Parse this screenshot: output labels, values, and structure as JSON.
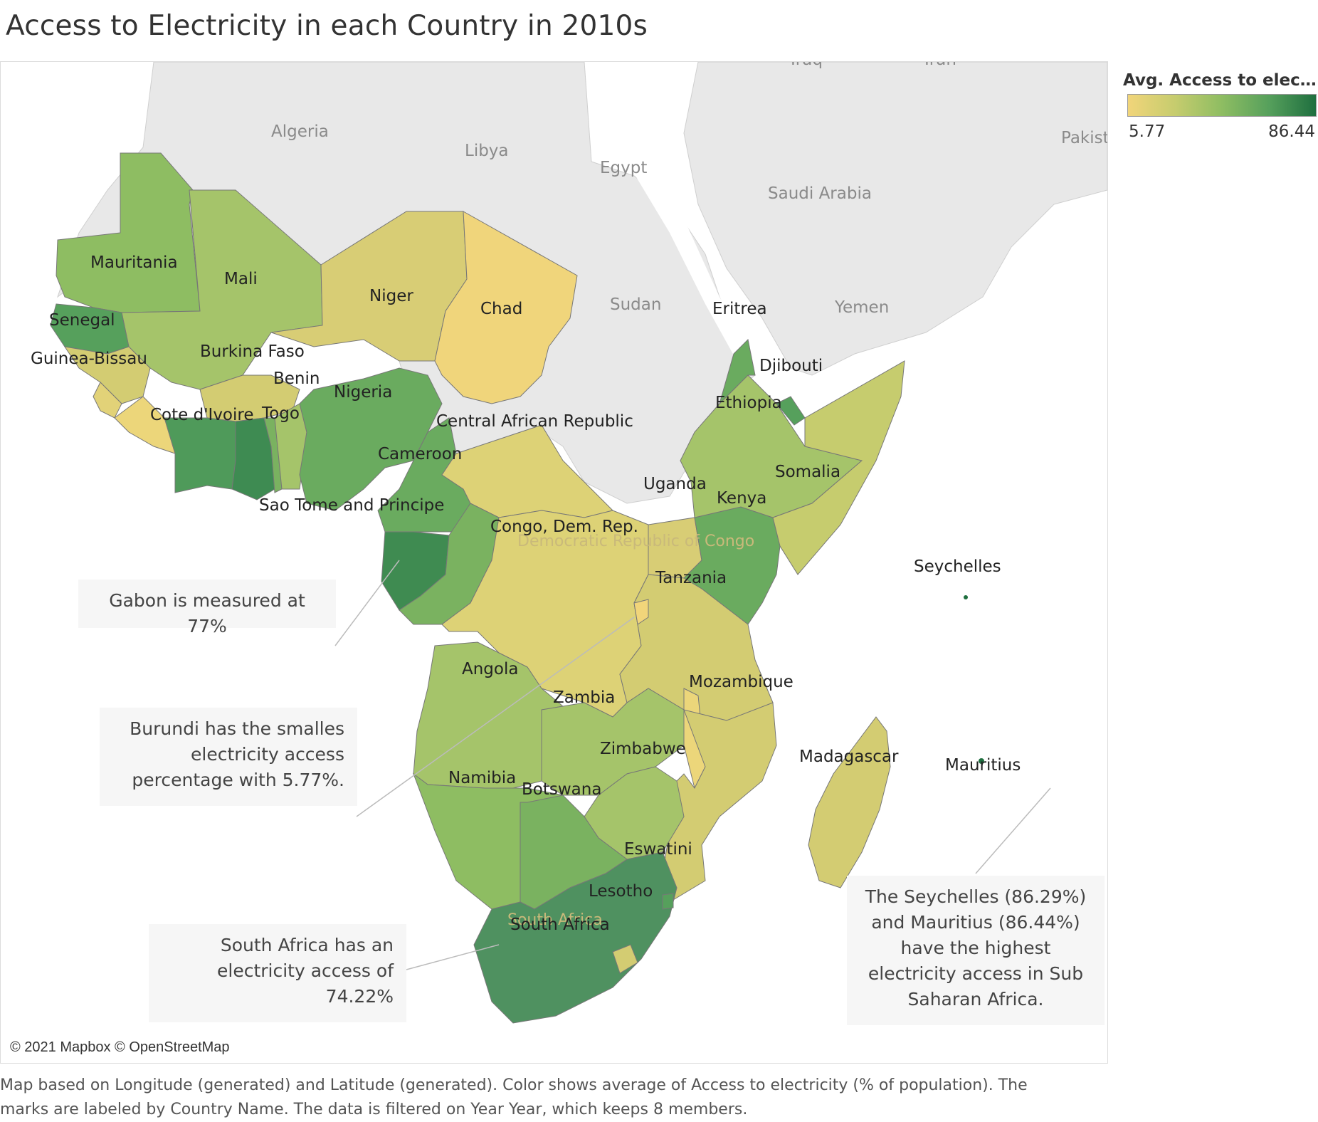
{
  "title": "Access to Electricity in each Country in 2010s",
  "legend": {
    "title": "Avg. Access to electrici..",
    "min": "5.77",
    "max": "86.44",
    "colors": [
      "#f1d57a",
      "#8ebd62",
      "#1f6f3f"
    ]
  },
  "background_labels": {
    "algeria": "Algeria",
    "libya": "Libya",
    "egypt": "Egypt",
    "saudi_arabia": "Saudi Arabia",
    "sudan": "Sudan",
    "yemen": "Yemen",
    "iraq": "Iraq",
    "iran": "Iran",
    "pakistan": "Pakist",
    "drc_ghost": "Democratic Republic of Congo",
    "south_africa_ghost": "South Africa"
  },
  "countries": {
    "mauritania": "Mauritania",
    "mali": "Mali",
    "niger": "Niger",
    "chad": "Chad",
    "senegal": "Senegal",
    "guinea_bissau": "Guinea-Bissau",
    "burkina_faso": "Burkina Faso",
    "benin": "Benin",
    "nigeria": "Nigeria",
    "cote_divoire": "Cote d'Ivoire",
    "togo": "Togo",
    "car": "Central African Republic",
    "cameroon": "Cameroon",
    "sao_tome": "Sao Tome and Principe",
    "drc": "Congo, Dem. Rep.",
    "uganda": "Uganda",
    "kenya": "Kenya",
    "somalia": "Somalia",
    "ethiopia": "Ethiopia",
    "djibouti": "Djibouti",
    "eritrea": "Eritrea",
    "seychelles": "Seychelles",
    "tanzania": "Tanzania",
    "angola": "Angola",
    "zambia": "Zambia",
    "mozambique": "Mozambique",
    "zimbabwe": "Zimbabwe",
    "madagascar": "Madagascar",
    "mauritius": "Mauritius",
    "namibia": "Namibia",
    "botswana": "Botswana",
    "eswatini": "Eswatini",
    "lesotho": "Lesotho",
    "south_africa": "South Africa"
  },
  "annotations": {
    "gabon": [
      "Gabon is measured at 77%"
    ],
    "burundi": [
      "Burundi has the smalles",
      "electricity access",
      "percentage with 5.77%."
    ],
    "south_africa": [
      "South Africa has an",
      "electricity access of",
      "74.22%"
    ],
    "seychelles": [
      "The Seychelles (86.29%)",
      "and Mauritius (86.44%)",
      "have the highest",
      "electricity access in Sub",
      "Saharan Africa."
    ]
  },
  "attribution": "© 2021 Mapbox © OpenStreetMap",
  "footer": "Map based on Longitude (generated) and Latitude (generated).  Color shows average of Access to electricity (% of population).  The marks are labeled by Country Name. The data is filtered on Year Year, which keeps 8 members."
}
